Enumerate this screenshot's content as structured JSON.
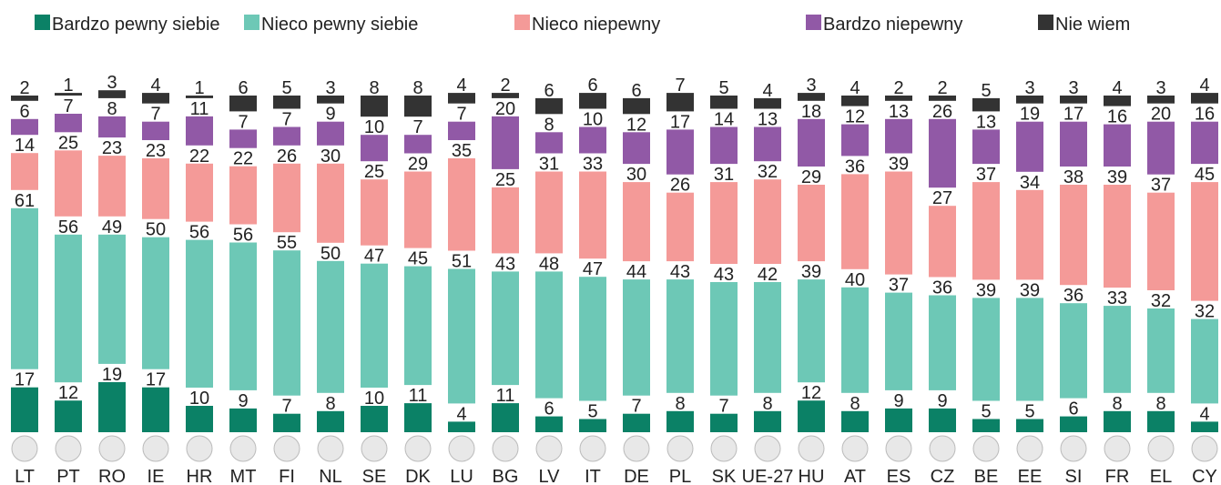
{
  "chart_data": {
    "type": "bar",
    "stacked": true,
    "categories": [
      "LT",
      "PT",
      "RO",
      "IE",
      "HR",
      "MT",
      "FI",
      "NL",
      "SE",
      "DK",
      "LU",
      "BG",
      "LV",
      "IT",
      "DE",
      "PL",
      "SK",
      "UE-27",
      "HU",
      "AT",
      "ES",
      "CZ",
      "BE",
      "EE",
      "SI",
      "FR",
      "EL",
      "CY"
    ],
    "series": [
      {
        "name": "Bardzo pewny siebie",
        "color": "#0b8166",
        "values": [
          17,
          12,
          19,
          17,
          10,
          9,
          7,
          8,
          10,
          11,
          4,
          11,
          6,
          5,
          7,
          8,
          7,
          8,
          12,
          8,
          9,
          9,
          5,
          5,
          6,
          8,
          8,
          4
        ]
      },
      {
        "name": "Nieco pewny siebie",
        "color": "#6dc8b6",
        "values": [
          61,
          56,
          49,
          50,
          56,
          56,
          55,
          50,
          47,
          45,
          51,
          43,
          48,
          47,
          44,
          43,
          43,
          42,
          39,
          40,
          37,
          36,
          39,
          39,
          36,
          33,
          32,
          32
        ]
      },
      {
        "name": "Nieco niepewny",
        "color": "#f49a98",
        "values": [
          14,
          25,
          23,
          23,
          22,
          22,
          26,
          30,
          25,
          29,
          35,
          25,
          31,
          33,
          30,
          26,
          31,
          32,
          29,
          36,
          39,
          27,
          37,
          34,
          38,
          39,
          37,
          45
        ]
      },
      {
        "name": "Bardzo niepewny",
        "color": "#9159a6",
        "values": [
          6,
          7,
          8,
          7,
          11,
          7,
          7,
          9,
          10,
          7,
          7,
          20,
          8,
          10,
          12,
          17,
          14,
          13,
          18,
          12,
          13,
          26,
          13,
          19,
          17,
          16,
          20,
          16
        ]
      },
      {
        "name": "Nie wiem",
        "color": "#333333",
        "values": [
          2,
          1,
          3,
          4,
          1,
          6,
          5,
          3,
          8,
          8,
          4,
          2,
          6,
          6,
          6,
          7,
          5,
          4,
          3,
          4,
          2,
          2,
          5,
          3,
          3,
          4,
          3,
          4
        ]
      }
    ]
  }
}
